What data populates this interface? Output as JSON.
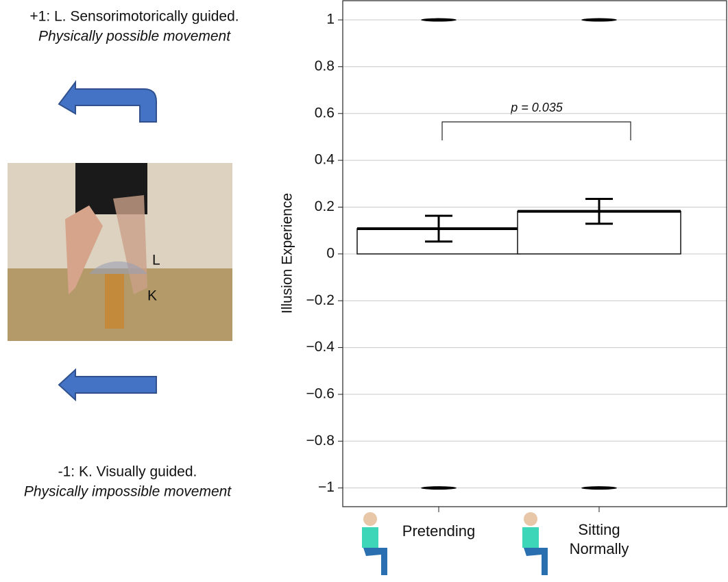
{
  "chart_data": {
    "type": "bar",
    "y_label": "Illusion Experience",
    "categories": [
      "Pretending",
      "Sitting Normally"
    ],
    "values": [
      0.108,
      0.182
    ],
    "errors": [
      0.055,
      0.053
    ],
    "points": [
      [
        1,
        -1
      ],
      [
        1,
        -1
      ]
    ],
    "color": "#ffffff",
    "ylim": [
      -1.08,
      1.085
    ],
    "yticks": [
      {
        "value": -1,
        "label": "−1"
      },
      {
        "value": -0.8,
        "label": "−0.8"
      },
      {
        "value": -0.6,
        "label": "−0.6"
      },
      {
        "value": -0.4,
        "label": "−0.4"
      },
      {
        "value": -0.2,
        "label": "−0.2"
      },
      0,
      0.2,
      0.4,
      0.6,
      0.8,
      1
    ],
    "grid": true,
    "annotation": "p  = 0.035"
  },
  "left_panel": {
    "top_label": "+1: L.  Sensorimotorically guided.",
    "top_sublabel": "Physically possible movement",
    "photo_labels": [
      "L",
      "K"
    ],
    "bottom_label": "-1:  K.  Visually guided.",
    "bottom_sublabel": "Physically impossible movement"
  }
}
